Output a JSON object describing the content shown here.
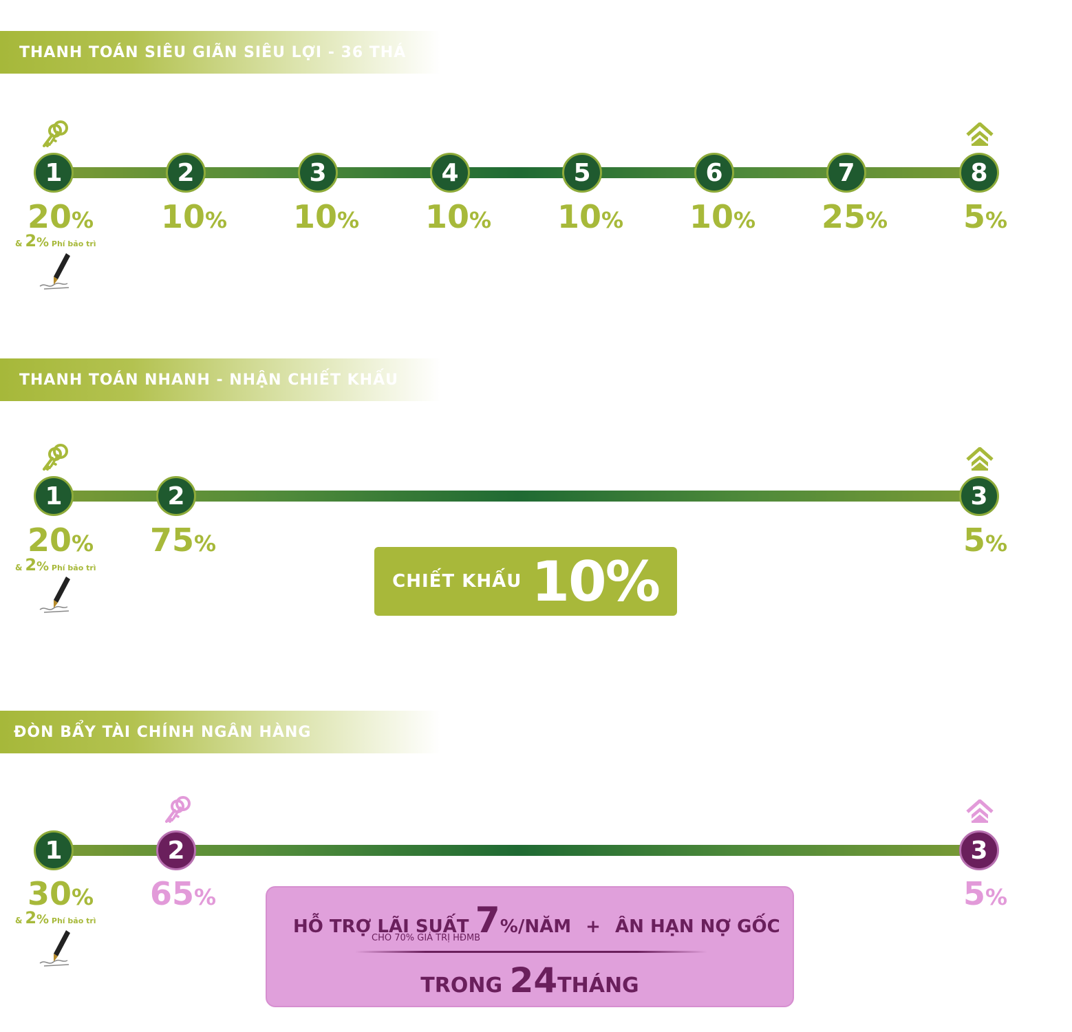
{
  "colors": {
    "lime": "#a7b93a",
    "dark_green": "#1f5a2f",
    "purple": "#6a1f5c",
    "pink": "#e29ad9",
    "pink_panel": "#e0a0db"
  },
  "icons": {
    "keys": "keys-icon",
    "house": "house-icon",
    "pen": "fountain-pen-signature-icon"
  },
  "plan1": {
    "title": "THANH TOÁN SIÊU GIÃN SIÊU LỢI - 36 THÁ",
    "steps": [
      {
        "n": "1",
        "pct": "20"
      },
      {
        "n": "2",
        "pct": "10"
      },
      {
        "n": "3",
        "pct": "10"
      },
      {
        "n": "4",
        "pct": "10"
      },
      {
        "n": "5",
        "pct": "10"
      },
      {
        "n": "6",
        "pct": "10"
      },
      {
        "n": "7",
        "pct": "25"
      },
      {
        "n": "8",
        "pct": "5"
      }
    ],
    "fee": {
      "amp": "&",
      "value": "2",
      "label": "Phí bảo trì"
    }
  },
  "plan2": {
    "title": "THANH TOÁN NHANH - NHẬN CHIẾT KHẤU",
    "steps": [
      {
        "n": "1",
        "pct": "20"
      },
      {
        "n": "2",
        "pct": "75"
      },
      {
        "n": "3",
        "pct": "5"
      }
    ],
    "fee": {
      "amp": "&",
      "value": "2",
      "label": "Phí bảo trì"
    },
    "discount": {
      "label": "CHIẾT KHẤU",
      "value": "10%"
    }
  },
  "plan3": {
    "title": "ĐÒN BẨY TÀI CHÍNH NGÂN HÀNG",
    "steps": [
      {
        "n": "1",
        "pct": "30"
      },
      {
        "n": "2",
        "pct": "65"
      },
      {
        "n": "3",
        "pct": "5"
      }
    ],
    "fee": {
      "amp": "&",
      "value": "2",
      "label": "Phí bảo trì"
    },
    "bank": {
      "support": "HỖ TRỢ LÃI SUẤT",
      "rate": "7",
      "rate_unit": "%/NĂM",
      "plus": "+",
      "grace": "ÂN HẠN NỢ GỐC",
      "note": "CHO 70% GIÁ TRỊ HĐMB",
      "within": "TRONG",
      "months": "24",
      "months_unit": "THÁNG"
    }
  },
  "percent_symbol": "%"
}
